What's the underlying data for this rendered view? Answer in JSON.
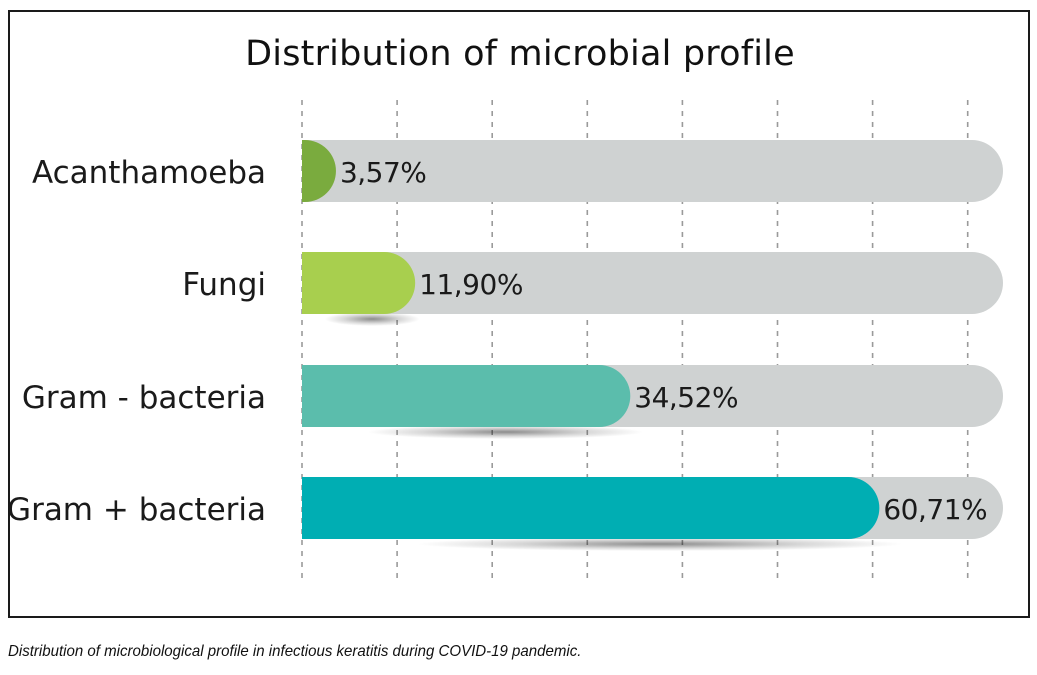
{
  "chart_data": {
    "type": "bar",
    "orientation": "horizontal",
    "title": "Distribution of microbial profile",
    "categories": [
      "Acanthamoeba",
      "Fungi",
      "Gram - bacteria",
      "Gram + bacteria"
    ],
    "values": [
      3.57,
      11.9,
      34.52,
      60.71
    ],
    "value_labels": [
      "3,57%",
      "11,90%",
      "34,52%",
      "60,71%"
    ],
    "xlim": [
      0,
      70
    ],
    "grid": true,
    "colors": [
      "#7aab3e",
      "#a8cf4e",
      "#5bbdac",
      "#00aeb3"
    ],
    "track_color": "#cfd2d2"
  },
  "caption": "Distribution of microbiological profile in infectious keratitis during COVID-19 pandemic."
}
